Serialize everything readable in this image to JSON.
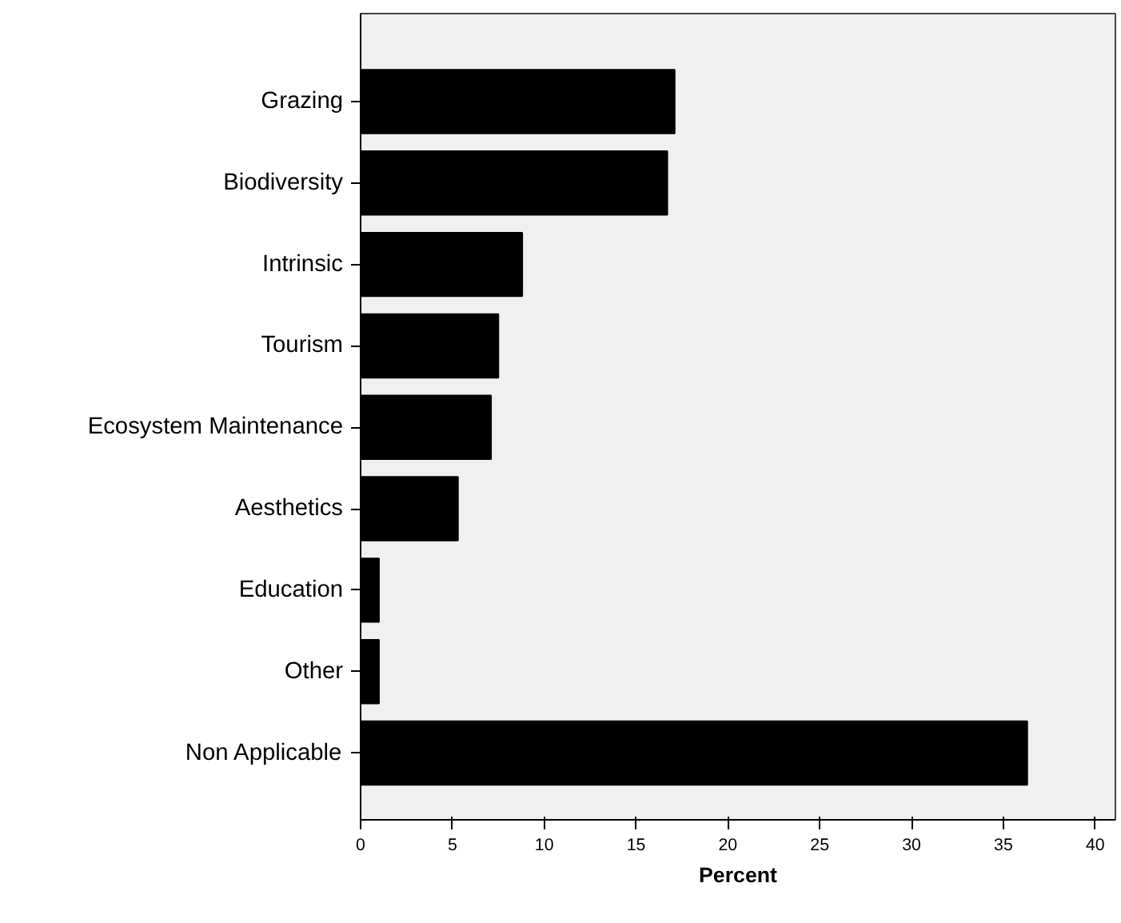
{
  "chart_data": {
    "type": "bar",
    "orientation": "horizontal",
    "xlabel": "Percent",
    "categories": [
      "Grazing",
      "Biodiversity",
      "Intrinsic",
      "Tourism",
      "Ecosystem Maintenance",
      "Aesthetics",
      "Education",
      "Other",
      "Non Applicable"
    ],
    "values": [
      17.1,
      16.7,
      8.8,
      7.5,
      7.1,
      5.3,
      1.0,
      1.0,
      36.3
    ],
    "color": "#000000",
    "xlim": [
      0,
      41.1
    ],
    "xticks": [
      0,
      5,
      10,
      15,
      20,
      25,
      30,
      35,
      40
    ],
    "grid": false
  }
}
